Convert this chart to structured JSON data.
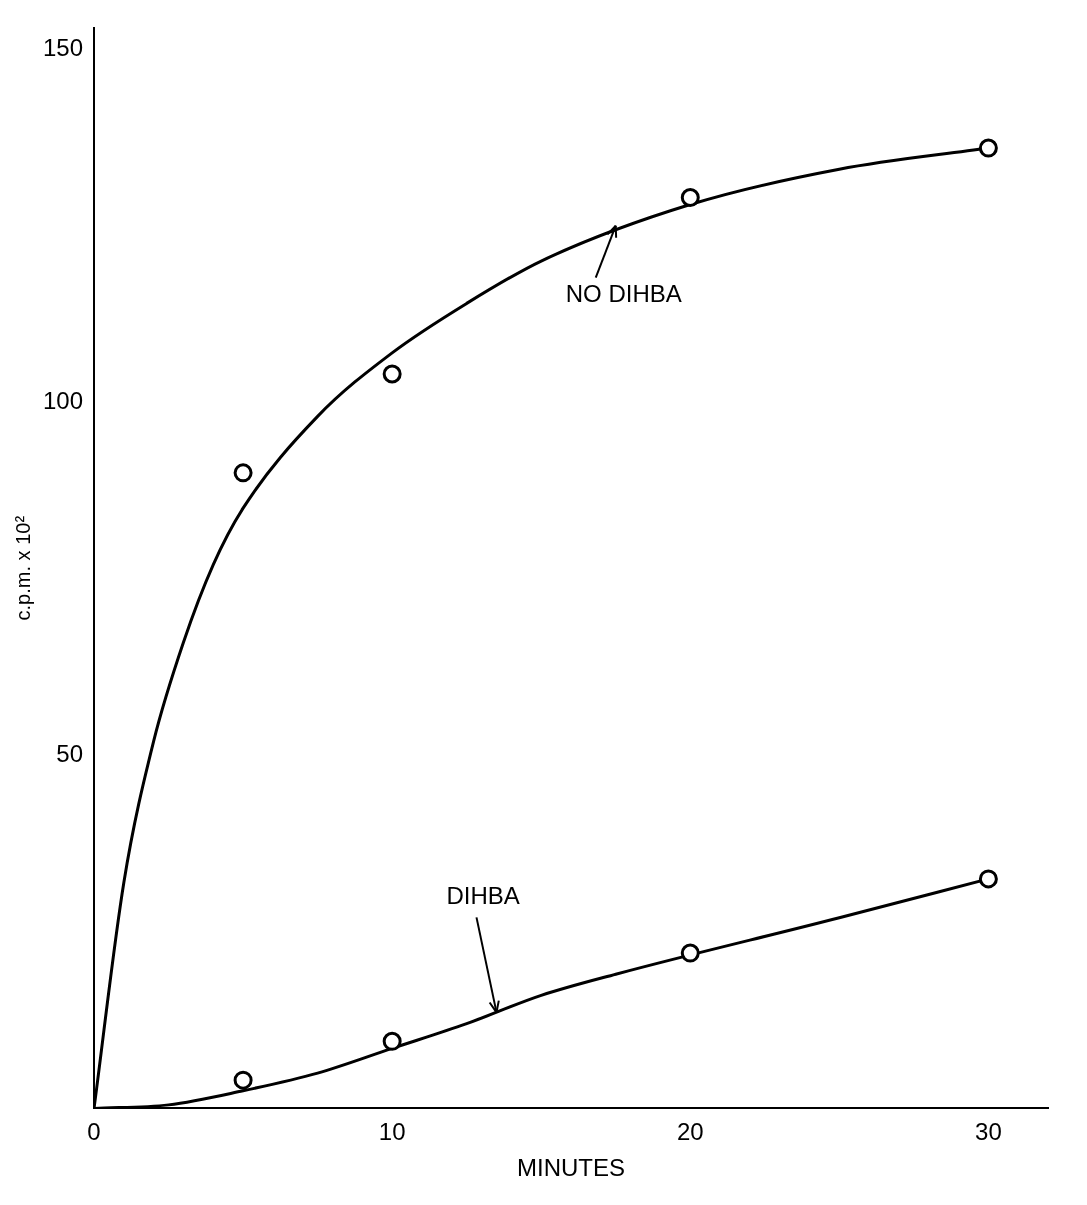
{
  "chart_data": {
    "type": "scatter",
    "xlabel": "MINUTES",
    "ylabel": "c.p.m. x 10²",
    "xlim": [
      0,
      32
    ],
    "ylim": [
      0,
      153
    ],
    "xticks": [
      0,
      10,
      20,
      30
    ],
    "yticks": [
      50,
      100,
      150
    ],
    "grid": false,
    "legend": false,
    "marker": "circle",
    "series": [
      {
        "color": "#000000",
        "x": [
          5,
          10,
          20,
          30
        ],
        "values": [
          90,
          104,
          129,
          136
        ]
      },
      {
        "color": "#000000",
        "x": [
          5,
          10,
          20,
          30
        ],
        "values": [
          4,
          9.5,
          22,
          32.5
        ]
      },
      {
        "type": "line",
        "color": "#000000",
        "marker": "none",
        "x": [
          0,
          1,
          2,
          3,
          4,
          5,
          7.5,
          10,
          12.5,
          15,
          20,
          25,
          30
        ],
        "values": [
          0,
          32,
          52,
          66,
          77,
          85,
          98,
          107,
          114,
          120,
          128,
          133,
          136
        ]
      },
      {
        "type": "line",
        "color": "#000000",
        "marker": "none",
        "x": [
          0,
          2.5,
          5,
          7.5,
          10,
          12.5,
          15,
          17.5,
          25,
          30
        ],
        "values": [
          0,
          0.5,
          2.5,
          5,
          8.5,
          12,
          16,
          19,
          27,
          32.5
        ]
      }
    ],
    "annotations": [
      {
        "text": "NO DIHBA",
        "x": 17.5,
        "y": 125
      },
      {
        "text": "DIHBA",
        "x": 13.5,
        "y": 13.6
      }
    ]
  }
}
